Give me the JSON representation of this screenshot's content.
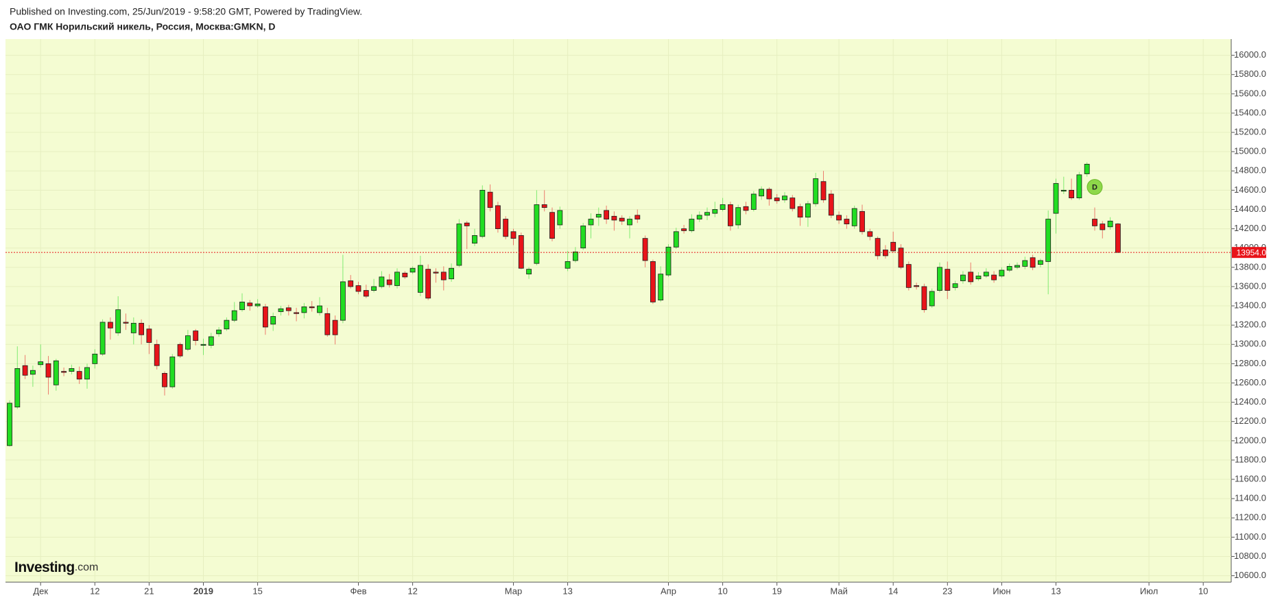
{
  "header": {
    "published": "Published on Investing.com, 25/Jun/2019 - 9:58:20 GMT, Powered by TradingView.",
    "instrument": "ОАО ГМК Норильский никель, Россия, Москва:GMKN, D"
  },
  "logo": {
    "name": "Investing",
    "suffix": ".com"
  },
  "chart_data": {
    "type": "candlestick",
    "categories": [
      null,
      null,
      null,
      null,
      "Дек",
      null,
      null,
      null,
      null,
      null,
      null,
      "12",
      null,
      null,
      null,
      null,
      null,
      null,
      "21",
      null,
      null,
      null,
      null,
      null,
      null,
      "2019",
      null,
      null,
      null,
      null,
      null,
      null,
      "15",
      null,
      null,
      null,
      null,
      null,
      null,
      null,
      null,
      null,
      null,
      null,
      null,
      "Фев",
      null,
      null,
      null,
      null,
      null,
      null,
      "12",
      null,
      null,
      null,
      null,
      null,
      null,
      null,
      null,
      null,
      null,
      null,
      null,
      "Мар",
      null,
      null,
      null,
      null,
      null,
      null,
      "13",
      null,
      null,
      null,
      null,
      null,
      null,
      null,
      null,
      null,
      null,
      null,
      null,
      "Апр",
      null,
      null,
      null,
      null,
      null,
      null,
      "10",
      null,
      null,
      null,
      null,
      null,
      null,
      "19",
      null,
      null,
      null,
      null,
      null,
      null,
      null,
      "Май",
      null,
      null,
      null,
      null,
      null,
      null,
      "14",
      null,
      null,
      null,
      null,
      null,
      null,
      "23",
      null,
      null,
      null,
      null,
      null,
      null,
      "Июн",
      null,
      null,
      null,
      null,
      null,
      null,
      "13",
      null,
      null,
      null,
      null,
      null,
      null,
      null,
      null,
      null,
      null,
      null,
      "Июл",
      null,
      null,
      null,
      null,
      null,
      null,
      "10"
    ],
    "open": [
      11950,
      12350,
      12780,
      12690,
      12790,
      12800,
      12580,
      12720,
      12720,
      12720,
      12640,
      12800,
      12900,
      13230,
      13120,
      13230,
      13120,
      13220,
      13160,
      13000,
      12700,
      12560,
      13000,
      12950,
      13140,
      12990,
      12990,
      13110,
      13160,
      13250,
      13360,
      13430,
      13400,
      13390,
      13210,
      13340,
      13380,
      13330,
      13330,
      13390,
      13330,
      13320,
      13250,
      13250,
      13660,
      13610,
      13560,
      13560,
      13600,
      13670,
      13610,
      13740,
      13750,
      13540,
      13780,
      13750,
      13750,
      13680,
      13820,
      14260,
      14050,
      14120,
      14580,
      14440,
      14300,
      14170,
      14130,
      13730,
      13840,
      14450,
      14370,
      14240,
      13790,
      13870,
      14000,
      14240,
      14320,
      14390,
      14330,
      14310,
      14240,
      14340,
      14100,
      13860,
      13460,
      13720,
      14010,
      14200,
      14180,
      14300,
      14340,
      14360,
      14400,
      14450,
      14240,
      14430,
      14400,
      14540,
      14610,
      14520,
      14500,
      14520,
      14430,
      14320,
      14460,
      14690,
      14560,
      14340,
      14300,
      14230,
      14380,
      14170,
      14100,
      13980,
      14060,
      14000,
      13830,
      13610,
      13600,
      13400,
      13560,
      13780,
      13590,
      13660,
      13750,
      13680,
      13710,
      13720,
      13710,
      13770,
      13800,
      13810,
      13900,
      13830,
      13860,
      14360,
      14590,
      14600,
      14520,
      14770,
      14300,
      14250,
      14220,
      14250,
      null,
      null,
      null,
      null,
      null,
      null,
      null,
      null,
      null,
      null,
      null
    ],
    "high": [
      12420,
      12980,
      12890,
      12780,
      13000,
      12880,
      12850,
      12760,
      12790,
      12770,
      12800,
      12950,
      13260,
      13280,
      13500,
      13320,
      13280,
      13260,
      13200,
      13050,
      12720,
      12900,
      13020,
      13150,
      13160,
      13060,
      13120,
      13180,
      13280,
      13440,
      13530,
      13460,
      13470,
      13420,
      13330,
      13400,
      13410,
      13380,
      13430,
      13450,
      13490,
      13380,
      13300,
      13930,
      13720,
      13650,
      13620,
      13680,
      13760,
      13730,
      13790,
      13760,
      13810,
      13920,
      13830,
      13790,
      13810,
      13840,
      14300,
      14280,
      14200,
      14650,
      14660,
      14480,
      14330,
      14200,
      14160,
      13800,
      14600,
      14600,
      14420,
      14430,
      13970,
      14010,
      14260,
      14360,
      14420,
      14440,
      14380,
      14340,
      14330,
      14400,
      14130,
      13880,
      13810,
      14040,
      14210,
      14240,
      14350,
      14380,
      14420,
      14480,
      14520,
      14480,
      14450,
      14480,
      14590,
      14640,
      14630,
      14560,
      14580,
      14550,
      14460,
      14490,
      14780,
      14800,
      14600,
      14380,
      14340,
      14440,
      14450,
      14200,
      14120,
      14030,
      14170,
      14040,
      13860,
      13640,
      13630,
      13580,
      13850,
      13860,
      13660,
      13760,
      13850,
      13750,
      13790,
      13760,
      13800,
      13840,
      13850,
      13910,
      13930,
      13890,
      14390,
      14720,
      14740,
      14720,
      14790,
      14890,
      14420,
      14280,
      14320,
      14260,
      null,
      null,
      null,
      null,
      null,
      null,
      null,
      null,
      null,
      null,
      null
    ],
    "low": [
      11940,
      12330,
      12640,
      12560,
      12760,
      12480,
      12520,
      12670,
      12690,
      12590,
      12540,
      12750,
      12880,
      13050,
      13090,
      13150,
      13000,
      13000,
      12900,
      12740,
      12470,
      12540,
      12860,
      12930,
      12990,
      12890,
      12960,
      13080,
      13140,
      13230,
      13340,
      13350,
      13380,
      13100,
      13140,
      13300,
      13300,
      13240,
      13270,
      13340,
      13300,
      13080,
      13000,
      13220,
      13580,
      13520,
      13480,
      13540,
      13580,
      13590,
      13580,
      13680,
      13730,
      13500,
      13460,
      13640,
      13560,
      13650,
      13800,
      13990,
      14020,
      14100,
      14380,
      14160,
      14090,
      14030,
      13780,
      13680,
      13820,
      14380,
      14070,
      14200,
      13760,
      13850,
      13980,
      14100,
      14230,
      14250,
      14180,
      14240,
      14100,
      14260,
      13800,
      13420,
      13440,
      13700,
      13990,
      14150,
      14160,
      14270,
      14290,
      14320,
      14380,
      14180,
      14200,
      14350,
      14380,
      14500,
      14440,
      14460,
      14470,
      14380,
      14230,
      14220,
      14430,
      14470,
      14310,
      14250,
      14200,
      14200,
      14140,
      14080,
      13880,
      13890,
      13950,
      13780,
      13560,
      13570,
      13330,
      13380,
      13540,
      13470,
      13560,
      13630,
      13620,
      13660,
      13690,
      13640,
      13690,
      13750,
      13780,
      13780,
      13770,
      13800,
      13520,
      14150,
      14560,
      14500,
      14500,
      14740,
      14180,
      14100,
      14190,
      13950,
      null,
      null,
      null,
      null,
      null,
      null,
      null,
      null,
      null,
      null,
      null
    ],
    "close": [
      12390,
      12750,
      12680,
      12730,
      12820,
      12660,
      12830,
      12710,
      12750,
      12640,
      12760,
      12900,
      13230,
      13170,
      13360,
      13220,
      13220,
      13100,
      13020,
      12780,
      12560,
      12870,
      12880,
      13090,
      13040,
      13000,
      13080,
      13150,
      13250,
      13350,
      13440,
      13400,
      13420,
      13180,
      13290,
      13370,
      13350,
      13320,
      13390,
      13380,
      13400,
      13100,
      13100,
      13650,
      13600,
      13550,
      13500,
      13600,
      13700,
      13620,
      13750,
      13700,
      13790,
      13820,
      13480,
      13740,
      13670,
      13790,
      14250,
      14230,
      14130,
      14600,
      14420,
      14200,
      14120,
      14100,
      13790,
      13780,
      14450,
      14420,
      14100,
      14390,
      13860,
      13960,
      14230,
      14300,
      14350,
      14300,
      14290,
      14280,
      14300,
      14300,
      13870,
      13440,
      13730,
      14010,
      14170,
      14180,
      14300,
      14340,
      14370,
      14400,
      14450,
      14230,
      14420,
      14390,
      14560,
      14610,
      14510,
      14490,
      14540,
      14410,
      14320,
      14460,
      14720,
      14500,
      14340,
      14290,
      14250,
      14410,
      14170,
      14120,
      13920,
      13920,
      13970,
      13800,
      13590,
      13600,
      13360,
      13550,
      13800,
      13560,
      13630,
      13720,
      13650,
      13710,
      13750,
      13670,
      13770,
      13810,
      13820,
      13870,
      13800,
      13870,
      14300,
      14670,
      14600,
      14520,
      14760,
      14870,
      14230,
      14190,
      14280,
      13954,
      null,
      null,
      null,
      null,
      null,
      null,
      null,
      null,
      null,
      null,
      null
    ],
    "up_color": "#22dd22",
    "down_color": "#e8141a",
    "ylim": [
      10533,
      16168
    ],
    "yticks": [
      {
        "value": 10600,
        "label": "10600.0"
      },
      {
        "value": 10800,
        "label": "10800.0"
      },
      {
        "value": 11000,
        "label": "11000.0"
      },
      {
        "value": 11200,
        "label": "11200.0"
      },
      {
        "value": 11400,
        "label": "11400.0"
      },
      {
        "value": 11600,
        "label": "11600.0"
      },
      {
        "value": 11800,
        "label": "11800.0"
      },
      {
        "value": 12000,
        "label": "12000.0"
      },
      {
        "value": 12200,
        "label": "12200.0"
      },
      {
        "value": 12400,
        "label": "12400.0"
      },
      {
        "value": 12600,
        "label": "12600.0"
      },
      {
        "value": 12800,
        "label": "12800.0"
      },
      {
        "value": 13000,
        "label": "13000.0"
      },
      {
        "value": 13200,
        "label": "13200.0"
      },
      {
        "value": 13400,
        "label": "13400.0"
      },
      {
        "value": 13600,
        "label": "13600.0"
      },
      {
        "value": 13800,
        "label": "13800.0"
      },
      {
        "value": 14000,
        "label": "14000.0"
      },
      {
        "value": 14200,
        "label": "14200.0"
      },
      {
        "value": 14400,
        "label": "14400.0"
      },
      {
        "value": 14600,
        "label": "14600.0"
      },
      {
        "value": 14800,
        "label": "14800.0"
      },
      {
        "value": 15000,
        "label": "15000.0"
      },
      {
        "value": 15200,
        "label": "15200.0"
      },
      {
        "value": 15400,
        "label": "15400.0"
      },
      {
        "value": 15600,
        "label": "15600.0"
      },
      {
        "value": 15800,
        "label": "15800.0"
      },
      {
        "value": 16000,
        "label": "16000.0"
      }
    ],
    "last_price": {
      "value": 13954,
      "label": "13954.0"
    },
    "annotation": "D",
    "grid": true
  }
}
